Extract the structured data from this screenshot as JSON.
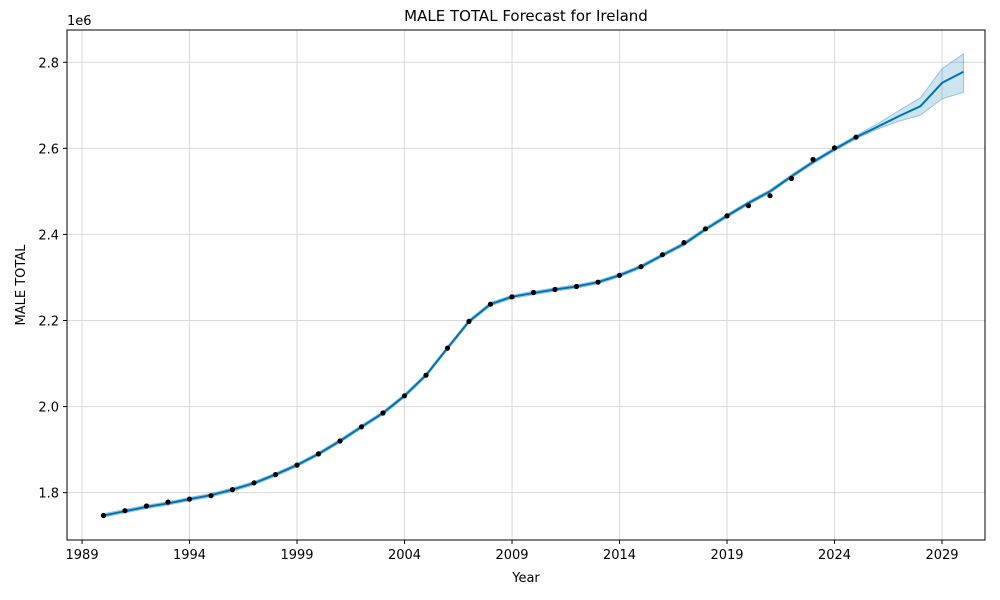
{
  "chart_data": {
    "type": "line",
    "title": "MALE TOTAL Forecast for Ireland",
    "xlabel": "Year",
    "ylabel": "MALE TOTAL",
    "y_offset_label": "1e6",
    "xlim": [
      1988.3,
      2031.0
    ],
    "ylim": [
      1.69,
      2.875
    ],
    "grid": true,
    "x_ticks": [
      1989,
      1994,
      1999,
      2004,
      2009,
      2014,
      2019,
      2024,
      2029
    ],
    "x_tick_labels": [
      "1989",
      "1994",
      "1999",
      "2004",
      "2009",
      "2014",
      "2019",
      "2024",
      "2029"
    ],
    "y_ticks": [
      1.8,
      2.0,
      2.2,
      2.4,
      2.6,
      2.8
    ],
    "y_tick_labels": [
      "1.8",
      "2.0",
      "2.2",
      "2.4",
      "2.6",
      "2.8"
    ],
    "colors": {
      "forecast_line": "#0072b2",
      "uncertainty_band": "#0072b2",
      "observed_points": "#000000",
      "grid": "#d9d9d9"
    },
    "series": [
      {
        "name": "Observed",
        "style": "points",
        "x": [
          1990,
          1991,
          1992,
          1993,
          1994,
          1995,
          1996,
          1997,
          1998,
          1999,
          2000,
          2001,
          2002,
          2003,
          2004,
          2005,
          2006,
          2007,
          2008,
          2009,
          2010,
          2011,
          2012,
          2013,
          2014,
          2015,
          2016,
          2017,
          2018,
          2019,
          2020,
          2021,
          2022,
          2023,
          2024,
          2025
        ],
        "values": [
          1.747,
          1.758,
          1.769,
          1.778,
          1.785,
          1.793,
          1.807,
          1.823,
          1.842,
          1.864,
          1.89,
          1.92,
          1.953,
          1.985,
          2.025,
          2.073,
          2.136,
          2.198,
          2.238,
          2.255,
          2.265,
          2.272,
          2.279,
          2.289,
          2.305,
          2.325,
          2.353,
          2.381,
          2.413,
          2.443,
          2.467,
          2.49,
          2.53,
          2.574,
          2.601,
          2.626
        ]
      },
      {
        "name": "Forecast",
        "style": "line",
        "x": [
          1990,
          1991,
          1992,
          1993,
          1994,
          1995,
          1996,
          1997,
          1998,
          1999,
          2000,
          2001,
          2002,
          2003,
          2004,
          2005,
          2006,
          2007,
          2008,
          2009,
          2010,
          2011,
          2012,
          2013,
          2014,
          2015,
          2016,
          2017,
          2018,
          2019,
          2020,
          2021,
          2022,
          2023,
          2024,
          2025,
          2026,
          2027,
          2028,
          2029,
          2030
        ],
        "values": [
          1.747,
          1.757,
          1.767,
          1.775,
          1.785,
          1.794,
          1.807,
          1.822,
          1.842,
          1.864,
          1.89,
          1.92,
          1.953,
          1.985,
          2.025,
          2.073,
          2.136,
          2.198,
          2.238,
          2.255,
          2.264,
          2.272,
          2.279,
          2.289,
          2.305,
          2.325,
          2.352,
          2.378,
          2.412,
          2.443,
          2.473,
          2.5,
          2.535,
          2.568,
          2.598,
          2.626,
          2.65,
          2.675,
          2.698,
          2.752,
          2.778
        ]
      },
      {
        "name": "Uncertainty Upper",
        "style": "band_upper",
        "x": [
          1990,
          1991,
          1992,
          1993,
          1994,
          1995,
          1996,
          1997,
          1998,
          1999,
          2000,
          2001,
          2002,
          2003,
          2004,
          2005,
          2006,
          2007,
          2008,
          2009,
          2010,
          2011,
          2012,
          2013,
          2014,
          2015,
          2016,
          2017,
          2018,
          2019,
          2020,
          2021,
          2022,
          2023,
          2024,
          2025,
          2026,
          2027,
          2028,
          2029,
          2030
        ],
        "values": [
          1.751,
          1.761,
          1.771,
          1.779,
          1.789,
          1.798,
          1.811,
          1.826,
          1.846,
          1.868,
          1.894,
          1.924,
          1.957,
          1.989,
          2.029,
          2.077,
          2.14,
          2.202,
          2.242,
          2.259,
          2.268,
          2.276,
          2.283,
          2.293,
          2.309,
          2.329,
          2.356,
          2.382,
          2.416,
          2.447,
          2.477,
          2.504,
          2.539,
          2.572,
          2.602,
          2.63,
          2.657,
          2.688,
          2.718,
          2.785,
          2.82
        ]
      },
      {
        "name": "Uncertainty Lower",
        "style": "band_lower",
        "x": [
          1990,
          1991,
          1992,
          1993,
          1994,
          1995,
          1996,
          1997,
          1998,
          1999,
          2000,
          2001,
          2002,
          2003,
          2004,
          2005,
          2006,
          2007,
          2008,
          2009,
          2010,
          2011,
          2012,
          2013,
          2014,
          2015,
          2016,
          2017,
          2018,
          2019,
          2020,
          2021,
          2022,
          2023,
          2024,
          2025,
          2026,
          2027,
          2028,
          2029,
          2030
        ],
        "values": [
          1.743,
          1.753,
          1.763,
          1.771,
          1.781,
          1.79,
          1.803,
          1.818,
          1.838,
          1.86,
          1.886,
          1.916,
          1.949,
          1.981,
          2.021,
          2.069,
          2.132,
          2.194,
          2.234,
          2.251,
          2.26,
          2.268,
          2.275,
          2.285,
          2.301,
          2.321,
          2.348,
          2.374,
          2.408,
          2.439,
          2.469,
          2.496,
          2.531,
          2.564,
          2.594,
          2.622,
          2.645,
          2.663,
          2.677,
          2.715,
          2.73
        ]
      }
    ]
  }
}
